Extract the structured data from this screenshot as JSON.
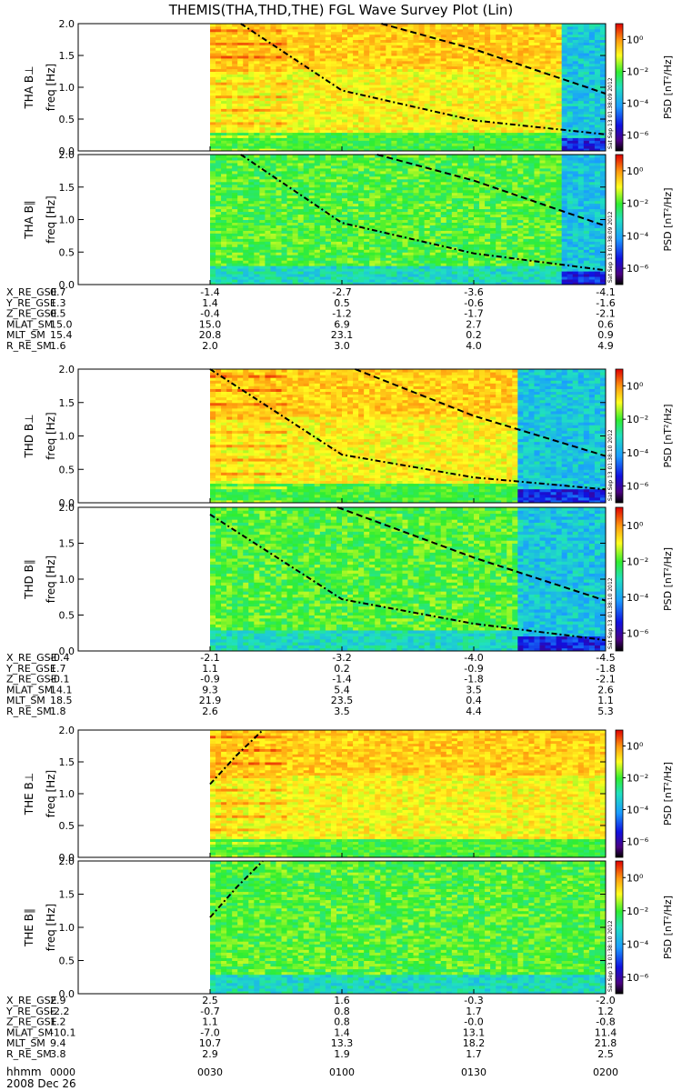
{
  "title": "THEMIS(THA,THD,THE) FGL Wave Survey Plot (Lin)",
  "date_label": "2008 Dec 26",
  "colorbar": {
    "label": "PSD [nT²/Hz]",
    "tick_labels": [
      "10⁰",
      "10⁻²",
      "10⁻⁴",
      "10⁻⁶"
    ]
  },
  "x_axis": {
    "label": "hhmm",
    "ticks": [
      "0000",
      "0030",
      "0100",
      "0130",
      "0200"
    ]
  },
  "chart_data": {
    "type": "heatmap",
    "x_unit": "hhmm (UT)",
    "x_range": [
      "0000",
      "0200"
    ],
    "y_label": "freq [Hz]",
    "y_ticks": [
      "0.0",
      "0.5",
      "1.0",
      "1.5",
      "2.0"
    ],
    "y_range": [
      0.0,
      2.0
    ],
    "z_label": "PSD [nT²/Hz]",
    "z_scale": "log",
    "z_range": [
      1e-07,
      10.0
    ],
    "panels": [
      {
        "probe": "THA",
        "component": "THA B⊥",
        "data_start": "0030",
        "data_end": "0200",
        "high_psd_band_end": "0150",
        "stamp": "Sat Sep 13 01:38:09 2012",
        "curves": [
          {
            "style": "dashdot",
            "points": [
              [
                37,
                2.0
              ],
              [
                60,
                0.95
              ],
              [
                90,
                0.48
              ],
              [
                120,
                0.26
              ]
            ]
          },
          {
            "style": "dash",
            "points": [
              [
                69,
                2.0
              ],
              [
                90,
                1.6
              ],
              [
                120,
                0.9
              ]
            ]
          }
        ]
      },
      {
        "probe": "THA",
        "component": "THA B∥",
        "data_start": "0030",
        "data_end": "0200",
        "high_psd_band_end": "0150",
        "stamp": "Sat Sep 13 01:38:09 2012",
        "curves": [
          {
            "style": "dashdot",
            "points": [
              [
                37,
                2.0
              ],
              [
                60,
                0.95
              ],
              [
                90,
                0.48
              ],
              [
                120,
                0.22
              ]
            ]
          },
          {
            "style": "dash",
            "points": [
              [
                68,
                2.0
              ],
              [
                90,
                1.6
              ],
              [
                120,
                0.9
              ]
            ]
          }
        ]
      },
      {
        "probe": "THD",
        "component": "THD B⊥",
        "data_start": "0030",
        "data_end": "0200",
        "high_psd_band_end": "0140",
        "stamp": "Sat Sep 13 01:38:10 2012",
        "curves": [
          {
            "style": "dashdot",
            "points": [
              [
                30,
                2.0
              ],
              [
                60,
                0.72
              ],
              [
                90,
                0.38
              ],
              [
                120,
                0.2
              ]
            ]
          },
          {
            "style": "dash",
            "points": [
              [
                63,
                2.0
              ],
              [
                90,
                1.3
              ],
              [
                120,
                0.7
              ]
            ]
          }
        ]
      },
      {
        "probe": "THD",
        "component": "THD B∥",
        "data_start": "0030",
        "data_end": "0200",
        "high_psd_band_end": "0140",
        "stamp": "Sat Sep 13 01:38:10 2012",
        "curves": [
          {
            "style": "dashdot",
            "points": [
              [
                30,
                1.9
              ],
              [
                60,
                0.72
              ],
              [
                90,
                0.38
              ],
              [
                120,
                0.15
              ]
            ]
          },
          {
            "style": "dash",
            "points": [
              [
                59,
                2.0
              ],
              [
                90,
                1.3
              ],
              [
                120,
                0.7
              ]
            ]
          }
        ]
      },
      {
        "probe": "THE",
        "component": "THE B⊥",
        "data_start": "0030",
        "data_end": "0200",
        "high_psd_band_end": null,
        "stamp": "",
        "curves": [
          {
            "style": "dashdot",
            "points": [
              [
                30,
                1.15
              ],
              [
                36,
                1.6
              ],
              [
                42,
                2.0
              ]
            ]
          }
        ]
      },
      {
        "probe": "THE",
        "component": "THE B∥",
        "data_start": "0030",
        "data_end": "0200",
        "high_psd_band_end": null,
        "stamp": "Sat Sep 13 01:38:10 2012",
        "curves": [
          {
            "style": "dashdot",
            "points": [
              [
                30,
                1.15
              ],
              [
                36,
                1.6
              ],
              [
                42,
                2.0
              ]
            ]
          }
        ]
      }
    ],
    "ephemeris": [
      {
        "probe": "THA",
        "rows": [
          {
            "label": "X_RE_GSE",
            "values": [
              "0.7",
              "-1.4",
              "-2.7",
              "-3.6",
              "-4.1"
            ]
          },
          {
            "label": "Y_RE_GSE",
            "values": [
              "1.3",
              "1.4",
              "0.5",
              "-0.6",
              "-1.6"
            ]
          },
          {
            "label": "Z_RE_GSE",
            "values": [
              "0.5",
              "-0.4",
              "-1.2",
              "-1.7",
              "-2.1"
            ]
          },
          {
            "label": "MLAT_SM",
            "values": [
              "15.0",
              "15.0",
              "6.9",
              "2.7",
              "0.6"
            ]
          },
          {
            "label": "MLT_SM",
            "values": [
              "15.4",
              "20.8",
              "23.1",
              "0.2",
              "0.9"
            ]
          },
          {
            "label": "R_RE_SM",
            "values": [
              "1.6",
              "2.0",
              "3.0",
              "4.0",
              "4.9"
            ]
          }
        ]
      },
      {
        "probe": "THD",
        "rows": [
          {
            "label": "X_RE_GSE",
            "values": [
              "-0.4",
              "-2.1",
              "-3.2",
              "-4.0",
              "-4.5"
            ]
          },
          {
            "label": "Y_RE_GSE",
            "values": [
              "1.7",
              "1.1",
              "0.2",
              "-0.9",
              "-1.8"
            ]
          },
          {
            "label": "Z_RE_GSE",
            "values": [
              "-0.1",
              "-0.9",
              "-1.4",
              "-1.8",
              "-2.1"
            ]
          },
          {
            "label": "MLAT_SM",
            "values": [
              "14.1",
              "9.3",
              "5.4",
              "3.5",
              "2.6"
            ]
          },
          {
            "label": "MLT_SM",
            "values": [
              "18.5",
              "21.9",
              "23.5",
              "0.4",
              "1.1"
            ]
          },
          {
            "label": "R_RE_SM",
            "values": [
              "1.8",
              "2.6",
              "3.5",
              "4.4",
              "5.3"
            ]
          }
        ]
      },
      {
        "probe": "THE",
        "rows": [
          {
            "label": "X_RE_GSE",
            "values": [
              "2.9",
              "2.5",
              "1.6",
              "-0.3",
              "-2.0"
            ]
          },
          {
            "label": "Y_RE_GSE",
            "values": [
              "-2.2",
              "-0.7",
              "0.8",
              "1.7",
              "1.2"
            ]
          },
          {
            "label": "Z_RE_GSE",
            "values": [
              "1.2",
              "1.1",
              "0.8",
              "-0.0",
              "-0.8"
            ]
          },
          {
            "label": "MLAT_SM",
            "values": [
              "-10.1",
              "-7.0",
              "1.4",
              "13.1",
              "11.4"
            ]
          },
          {
            "label": "MLT_SM",
            "values": [
              "9.4",
              "10.7",
              "13.3",
              "18.2",
              "21.8"
            ]
          },
          {
            "label": "R_RE_SM",
            "values": [
              "3.8",
              "2.9",
              "1.9",
              "1.7",
              "2.5"
            ]
          }
        ]
      }
    ]
  }
}
